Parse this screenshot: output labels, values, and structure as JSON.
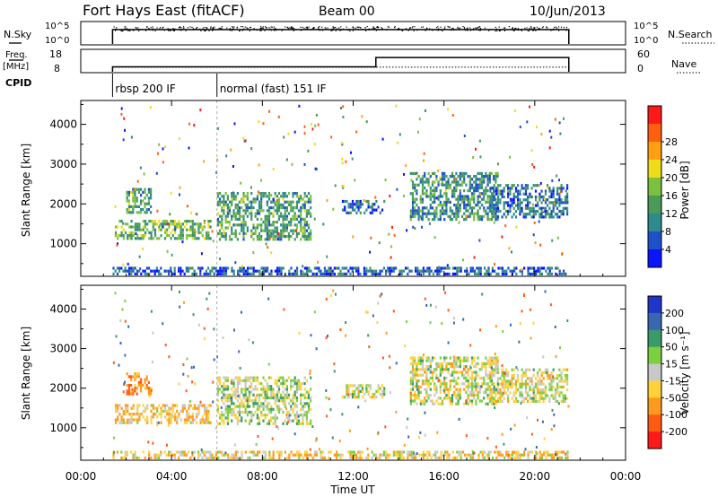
{
  "header": {
    "title": "Fort Hays East (fitACF)",
    "beam": "Beam 00",
    "date": "10/Jun/2013"
  },
  "top_panels": {
    "nsky_label": "N.Sky",
    "nsearch_label": "N.Search",
    "noise_ticks": [
      "10^5",
      "10^0"
    ],
    "freq_label_1": "Freq.",
    "freq_label_2": "[MHz]",
    "freq_ticks": [
      "18",
      "8"
    ],
    "nave_label": "Nave",
    "nave_ticks": [
      "60",
      "0"
    ],
    "cpid_label": "CPID",
    "cpid_segments": [
      {
        "label": "rbsp 200 IF",
        "start_h": 1.4
      },
      {
        "label": "normal (fast) 151 IF",
        "start_h": 6.0
      }
    ]
  },
  "power_colorbar": {
    "label": "Power [dB]",
    "ticks": [
      "4",
      "8",
      "12",
      "16",
      "20",
      "24",
      "28"
    ],
    "colors": [
      "#0a14ff",
      "#1e50c8",
      "#2e8a8c",
      "#4a9a58",
      "#7cc040",
      "#f0dc1a",
      "#ffa010",
      "#ff6010",
      "#ff1a1a"
    ]
  },
  "velocity_colorbar": {
    "label": "Velocity [m s⁻¹]",
    "ticks": [
      "200",
      "100",
      "50",
      "15",
      "-15",
      "-50",
      "-100",
      "-200"
    ],
    "colors": [
      "#2036c8",
      "#3a68b0",
      "#3a9a6a",
      "#7cd040",
      "#c8c8c8",
      "#ffd23a",
      "#ff9a1e",
      "#ff5a14",
      "#ff1a1a"
    ]
  },
  "x_axis": {
    "label": "Time UT",
    "ticks": [
      "00:00",
      "04:00",
      "08:00",
      "12:00",
      "16:00",
      "20:00",
      "00:00"
    ]
  },
  "chart_data": {
    "type": "heatmap",
    "xlabel": "Time UT",
    "xlim": [
      0,
      24
    ],
    "panels": [
      {
        "name": "Power",
        "ylabel": "Slant Range [km]",
        "ylim": [
          180,
          4600
        ],
        "yticks": [
          1000,
          2000,
          3000,
          4000
        ],
        "colorbar": "Power [dB]",
        "clim": [
          0,
          30
        ],
        "regions": [
          {
            "t0": 1.5,
            "t1": 5.8,
            "r0": 1050,
            "r1": 1600,
            "v": 14
          },
          {
            "t0": 2.0,
            "t1": 3.2,
            "r0": 1750,
            "r1": 2400,
            "v": 12
          },
          {
            "t0": 6.0,
            "t1": 10.2,
            "r0": 1050,
            "r1": 2300,
            "v": 12
          },
          {
            "t0": 11.5,
            "t1": 13.5,
            "r0": 1700,
            "r1": 2100,
            "v": 6
          },
          {
            "t0": 14.5,
            "t1": 18.5,
            "r0": 1550,
            "r1": 2800,
            "v": 10
          },
          {
            "t0": 18.0,
            "t1": 21.5,
            "r0": 1600,
            "r1": 2500,
            "v": 7
          },
          {
            "t0": 1.4,
            "t1": 21.5,
            "r0": 180,
            "r1": 420,
            "v": 6
          }
        ]
      },
      {
        "name": "Velocity",
        "ylabel": "Slant Range [km]",
        "ylim": [
          180,
          4600
        ],
        "yticks": [
          1000,
          2000,
          3000,
          4000
        ],
        "colorbar": "Velocity [m s⁻¹]",
        "clim": [
          -250,
          250
        ],
        "regions": [
          {
            "t0": 1.5,
            "t1": 5.8,
            "r0": 1050,
            "r1": 1600,
            "v": -40
          },
          {
            "t0": 2.0,
            "t1": 3.2,
            "r0": 1750,
            "r1": 2400,
            "v": -80
          },
          {
            "t0": 6.0,
            "t1": 10.2,
            "r0": 1050,
            "r1": 2300,
            "v": 10
          },
          {
            "t0": 11.5,
            "t1": 13.5,
            "r0": 1700,
            "r1": 2100,
            "v": 0
          },
          {
            "t0": 14.5,
            "t1": 18.5,
            "r0": 1550,
            "r1": 2800,
            "v": 0
          },
          {
            "t0": 18.0,
            "t1": 21.5,
            "r0": 1600,
            "r1": 2500,
            "v": 0
          },
          {
            "t0": 1.4,
            "t1": 21.5,
            "r0": 180,
            "r1": 420,
            "v": -30
          }
        ]
      }
    ],
    "frequency_mhz": [
      {
        "t0": 1.4,
        "t1": 6.0,
        "v": 10.5
      },
      {
        "t0": 6.0,
        "t1": 13.0,
        "v": 10.5
      },
      {
        "t0": 13.0,
        "t1": 21.5,
        "v": 14.5
      }
    ],
    "noise_sky_level": 3.6,
    "nave_level": 14
  }
}
